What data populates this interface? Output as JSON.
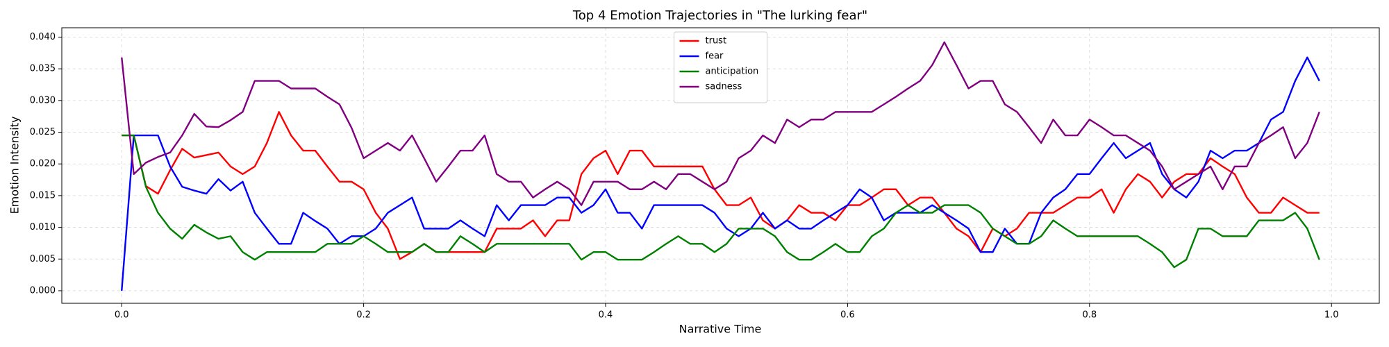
{
  "chart_data": {
    "type": "line",
    "title": "Top 4 Emotion Trajectories in \"The lurking fear\"",
    "x_label": "Narrative Time",
    "y_label": "Emotion Intensity",
    "x": [
      0,
      0.01,
      0.02,
      0.03,
      0.04,
      0.05,
      0.06,
      0.07,
      0.08,
      0.09,
      0.1,
      0.11,
      0.12,
      0.13,
      0.14,
      0.15,
      0.16,
      0.17,
      0.18,
      0.19,
      0.2,
      0.21,
      0.22,
      0.23,
      0.24,
      0.25,
      0.26,
      0.27,
      0.28,
      0.29,
      0.3,
      0.31,
      0.32,
      0.33,
      0.34,
      0.35,
      0.36,
      0.37,
      0.38,
      0.39,
      0.4,
      0.41,
      0.42,
      0.43,
      0.44,
      0.45,
      0.46,
      0.47,
      0.48,
      0.49,
      0.5,
      0.51,
      0.52,
      0.53,
      0.54,
      0.55,
      0.56,
      0.57,
      0.58,
      0.59,
      0.6,
      0.61,
      0.62,
      0.63,
      0.64,
      0.65,
      0.66,
      0.67,
      0.68,
      0.69,
      0.7,
      0.71,
      0.72,
      0.73,
      0.74,
      0.75,
      0.76,
      0.77,
      0.78,
      0.79,
      0.8,
      0.81,
      0.82,
      0.83,
      0.84,
      0.85,
      0.86,
      0.87,
      0.88,
      0.89,
      0.9,
      0.91,
      0.92,
      0.93,
      0.94,
      0.95,
      0.96,
      0.97,
      0.98,
      0.99
    ],
    "series": [
      {
        "name": "trust",
        "color": "#ff0000",
        "values": [
          0.0245,
          0.0245,
          0.0165,
          0.0153,
          0.019,
          0.0224,
          0.021,
          0.0214,
          0.0218,
          0.0196,
          0.0184,
          0.0196,
          0.0233,
          0.0282,
          0.0245,
          0.0221,
          0.0221,
          0.0196,
          0.0172,
          0.0172,
          0.016,
          0.0123,
          0.0098,
          0.005,
          0.0061,
          0.0074,
          0.0061,
          0.0061,
          0.0061,
          0.0061,
          0.0061,
          0.0098,
          0.0098,
          0.0098,
          0.0111,
          0.0086,
          0.0111,
          0.0111,
          0.0184,
          0.0209,
          0.0221,
          0.0184,
          0.0221,
          0.0221,
          0.0196,
          0.0196,
          0.0196,
          0.0196,
          0.0196,
          0.016,
          0.0135,
          0.0135,
          0.0147,
          0.0111,
          0.0098,
          0.0111,
          0.0135,
          0.0123,
          0.0123,
          0.0111,
          0.0135,
          0.0135,
          0.0147,
          0.016,
          0.016,
          0.0135,
          0.0147,
          0.0147,
          0.0123,
          0.0098,
          0.0086,
          0.0061,
          0.0098,
          0.0086,
          0.0098,
          0.0123,
          0.0123,
          0.0123,
          0.0135,
          0.0147,
          0.0147,
          0.016,
          0.0123,
          0.016,
          0.0184,
          0.0172,
          0.0147,
          0.0172,
          0.0184,
          0.0184,
          0.0209,
          0.0196,
          0.0184,
          0.0147,
          0.0123,
          0.0123,
          0.0147,
          0.0135,
          0.0123,
          0.0123
        ]
      },
      {
        "name": "fear",
        "color": "#0000ff",
        "values": [
          0,
          0.0245,
          0.0245,
          0.0245,
          0.0196,
          0.0164,
          0.0158,
          0.0153,
          0.0176,
          0.0158,
          0.0172,
          0.0123,
          0.0098,
          0.0074,
          0.0074,
          0.0123,
          0.011,
          0.0098,
          0.0074,
          0.0086,
          0.0086,
          0.0098,
          0.0123,
          0.0135,
          0.0147,
          0.0098,
          0.0098,
          0.0098,
          0.0111,
          0.0098,
          0.0086,
          0.0135,
          0.0111,
          0.0135,
          0.0135,
          0.0135,
          0.0147,
          0.0147,
          0.0123,
          0.0135,
          0.016,
          0.0123,
          0.0123,
          0.0098,
          0.0135,
          0.0135,
          0.0135,
          0.0135,
          0.0135,
          0.0123,
          0.0098,
          0.0086,
          0.0098,
          0.0123,
          0.0098,
          0.0111,
          0.0098,
          0.0098,
          0.0111,
          0.0123,
          0.0135,
          0.016,
          0.0147,
          0.0111,
          0.0123,
          0.0123,
          0.0123,
          0.0135,
          0.0123,
          0.0111,
          0.0098,
          0.0061,
          0.0061,
          0.0098,
          0.0074,
          0.0074,
          0.0123,
          0.0147,
          0.016,
          0.0184,
          0.0184,
          0.0209,
          0.0233,
          0.0209,
          0.0221,
          0.0233,
          0.0184,
          0.016,
          0.0147,
          0.0172,
          0.0221,
          0.0209,
          0.0221,
          0.0221,
          0.0233,
          0.027,
          0.0282,
          0.0331,
          0.0368,
          0.0331
        ]
      },
      {
        "name": "anticipation",
        "color": "#008000",
        "values": [
          0.0245,
          0.0245,
          0.0164,
          0.0123,
          0.0098,
          0.0082,
          0.0104,
          0.0092,
          0.0082,
          0.0086,
          0.0061,
          0.0049,
          0.0061,
          0.0061,
          0.0061,
          0.0061,
          0.0061,
          0.0074,
          0.0074,
          0.0074,
          0.0086,
          0.0074,
          0.0061,
          0.0061,
          0.0061,
          0.0074,
          0.0061,
          0.0061,
          0.0086,
          0.0074,
          0.0061,
          0.0074,
          0.0074,
          0.0074,
          0.0074,
          0.0074,
          0.0074,
          0.0074,
          0.0049,
          0.0061,
          0.0061,
          0.0049,
          0.0049,
          0.0049,
          0.0061,
          0.0074,
          0.0086,
          0.0074,
          0.0074,
          0.0061,
          0.0074,
          0.0098,
          0.0098,
          0.0098,
          0.0086,
          0.0061,
          0.0049,
          0.0049,
          0.0061,
          0.0074,
          0.0061,
          0.0061,
          0.0086,
          0.0098,
          0.0123,
          0.0135,
          0.0123,
          0.0123,
          0.0135,
          0.0135,
          0.0135,
          0.0123,
          0.0098,
          0.0086,
          0.0074,
          0.0074,
          0.0086,
          0.0111,
          0.0098,
          0.0086,
          0.0086,
          0.0086,
          0.0086,
          0.0086,
          0.0086,
          0.0074,
          0.0061,
          0.0037,
          0.0049,
          0.0098,
          0.0098,
          0.0086,
          0.0086,
          0.0086,
          0.0111,
          0.0111,
          0.0111,
          0.0123,
          0.0098,
          0.0049
        ]
      },
      {
        "name": "sadness",
        "color": "#800080",
        "values": [
          0.0368,
          0.0184,
          0.0202,
          0.0211,
          0.0218,
          0.0245,
          0.0279,
          0.0259,
          0.0258,
          0.0269,
          0.0282,
          0.0331,
          0.0331,
          0.0331,
          0.0319,
          0.0319,
          0.0319,
          0.0306,
          0.0294,
          0.0257,
          0.0209,
          0.0221,
          0.0233,
          0.0221,
          0.0245,
          0.0209,
          0.0172,
          0.0196,
          0.0221,
          0.0221,
          0.0245,
          0.0184,
          0.0172,
          0.0172,
          0.0147,
          0.016,
          0.0172,
          0.016,
          0.0135,
          0.0172,
          0.0172,
          0.0172,
          0.016,
          0.016,
          0.0172,
          0.016,
          0.0184,
          0.0184,
          0.0172,
          0.016,
          0.0172,
          0.0209,
          0.0221,
          0.0245,
          0.0233,
          0.027,
          0.0258,
          0.027,
          0.027,
          0.0282,
          0.0282,
          0.0282,
          0.0282,
          0.0294,
          0.0306,
          0.0319,
          0.0331,
          0.0356,
          0.0392,
          0.0356,
          0.0319,
          0.0331,
          0.0331,
          0.0294,
          0.0282,
          0.0258,
          0.0233,
          0.027,
          0.0245,
          0.0245,
          0.027,
          0.0258,
          0.0245,
          0.0245,
          0.0233,
          0.0221,
          0.0196,
          0.016,
          0.0172,
          0.0184,
          0.0196,
          0.016,
          0.0196,
          0.0196,
          0.0233,
          0.0245,
          0.0258,
          0.0209,
          0.0233,
          0.0282
        ]
      }
    ],
    "xlim": [
      -0.0495,
      1.0395
    ],
    "ylim": [
      -0.001975,
      0.041475
    ],
    "xticks": [
      {
        "value": 0,
        "label": "0.0"
      },
      0.2,
      0.4,
      0.6,
      0.8,
      {
        "value": 1,
        "label": "1.0"
      }
    ],
    "yticks": [
      {
        "value": 0,
        "label": "0.000"
      },
      {
        "value": 0.005,
        "label": "0.005"
      },
      {
        "value": 0.01,
        "label": "0.010"
      },
      {
        "value": 0.015,
        "label": "0.015"
      },
      {
        "value": 0.02,
        "label": "0.020"
      },
      {
        "value": 0.025,
        "label": "0.025"
      },
      {
        "value": 0.03,
        "label": "0.030"
      },
      {
        "value": 0.035,
        "label": "0.035"
      },
      {
        "value": 0.04,
        "label": "0.040"
      }
    ],
    "grid": true,
    "legend": "upper center"
  }
}
